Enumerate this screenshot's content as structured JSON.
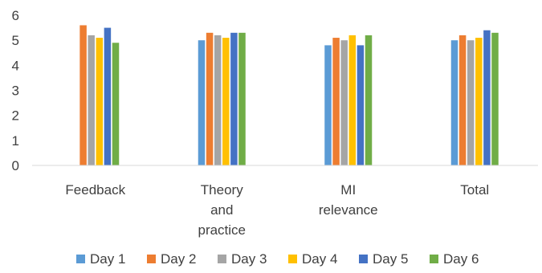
{
  "chart_data": {
    "type": "bar",
    "categories": [
      [
        "Feedback"
      ],
      [
        "Theory",
        "and",
        "practice"
      ],
      [
        "MI",
        "relevance"
      ],
      [
        "Total"
      ]
    ],
    "series": [
      {
        "name": "Day 1",
        "color": "#5b9bd5",
        "values": [
          0,
          5.0,
          4.8,
          5.0
        ]
      },
      {
        "name": "Day 2",
        "color": "#ed7d31",
        "values": [
          5.6,
          5.3,
          5.1,
          5.2
        ]
      },
      {
        "name": "Day 3",
        "color": "#a5a5a5",
        "values": [
          5.2,
          5.2,
          5.0,
          5.0
        ]
      },
      {
        "name": "Day 4",
        "color": "#ffc000",
        "values": [
          5.1,
          5.1,
          5.2,
          5.1
        ]
      },
      {
        "name": "Day 5",
        "color": "#4472c4",
        "values": [
          5.5,
          5.3,
          4.8,
          5.4
        ]
      },
      {
        "name": "Day 6",
        "color": "#70ad47",
        "values": [
          4.9,
          5.3,
          5.2,
          5.3
        ]
      }
    ],
    "y_ticks": [
      "0",
      "1",
      "2",
      "3",
      "4",
      "5",
      "6"
    ],
    "ylim": [
      0,
      6
    ],
    "grid": false,
    "legend": "bottom"
  }
}
